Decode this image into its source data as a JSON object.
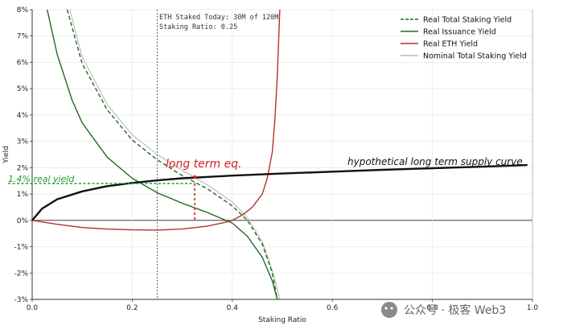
{
  "chart_data": {
    "type": "line",
    "title": "",
    "xlabel": "Staking Ratio",
    "ylabel": "Yield",
    "xlim": [
      0.0,
      1.0
    ],
    "ylim": [
      -3,
      8
    ],
    "x_ticks": [
      "0.0",
      "0.2",
      "0.4",
      "0.6",
      "0.8",
      "1.0"
    ],
    "y_ticks": [
      "-3%",
      "-2%",
      "-1%",
      "0%",
      "1%",
      "2%",
      "3%",
      "4%",
      "5%",
      "6%",
      "7%",
      "8%"
    ],
    "grid": true,
    "legend_position": "top-right",
    "info_box": {
      "line1": "ETH Staked Today:  30M of 120M",
      "line2": "Staking Ratio:     0.25"
    },
    "vline_x": 0.25,
    "series": [
      {
        "name": "Real Total Staking Yield",
        "color": "#1f6b1f",
        "dash": true,
        "x": [
          0.07,
          0.1,
          0.15,
          0.2,
          0.25,
          0.3,
          0.35,
          0.4,
          0.43,
          0.46,
          0.48,
          0.49
        ],
        "y": [
          8.0,
          5.95,
          4.2,
          3.05,
          2.3,
          1.7,
          1.2,
          0.55,
          0.0,
          -0.9,
          -2.0,
          -3.0
        ]
      },
      {
        "name": "Real Issuance Yield",
        "color": "#1f6b1f",
        "dash": false,
        "x": [
          0.03,
          0.05,
          0.08,
          0.1,
          0.15,
          0.2,
          0.25,
          0.3,
          0.35,
          0.4,
          0.43,
          0.46,
          0.48,
          0.49
        ],
        "y": [
          8.0,
          6.3,
          4.55,
          3.7,
          2.4,
          1.6,
          1.05,
          0.65,
          0.3,
          -0.1,
          -0.6,
          -1.4,
          -2.3,
          -3.0
        ]
      },
      {
        "name": "Real ETH Yield",
        "color": "#b0342a",
        "dash": false,
        "x": [
          0.0,
          0.05,
          0.1,
          0.15,
          0.2,
          0.25,
          0.3,
          0.35,
          0.38,
          0.4,
          0.42,
          0.44,
          0.46,
          0.47,
          0.48,
          0.485,
          0.49,
          0.495
        ],
        "y": [
          0.0,
          -0.15,
          -0.27,
          -0.33,
          -0.36,
          -0.37,
          -0.33,
          -0.22,
          -0.1,
          0.0,
          0.2,
          0.5,
          1.0,
          1.6,
          2.6,
          3.8,
          5.5,
          8.0
        ]
      },
      {
        "name": "Nominal Total Staking Yield",
        "color": "#b8b8b8",
        "dash": false,
        "x": [
          0.075,
          0.1,
          0.15,
          0.2,
          0.25,
          0.3,
          0.35,
          0.4,
          0.43,
          0.46,
          0.48,
          0.495
        ],
        "y": [
          8.0,
          6.2,
          4.4,
          3.25,
          2.5,
          1.9,
          1.35,
          0.7,
          0.1,
          -0.8,
          -1.9,
          -3.0
        ]
      }
    ],
    "supply_curve": {
      "color": "#111111",
      "x": [
        0.0,
        0.02,
        0.05,
        0.1,
        0.15,
        0.2,
        0.25,
        0.3,
        0.4,
        0.5,
        0.6,
        0.7,
        0.8,
        0.9,
        0.99
      ],
      "y": [
        0.0,
        0.45,
        0.8,
        1.1,
        1.3,
        1.42,
        1.52,
        1.6,
        1.7,
        1.78,
        1.85,
        1.92,
        1.98,
        2.04,
        2.1
      ]
    },
    "annotations": {
      "supply_curve_label": "hypothetical long term supply curve",
      "equilibrium_label": "long term eq.",
      "real_yield_label": "1.4% real yield",
      "equilibrium_x": 0.325,
      "equilibrium_y": 1.4
    }
  },
  "watermark": "公众号 · 极客 Web3"
}
